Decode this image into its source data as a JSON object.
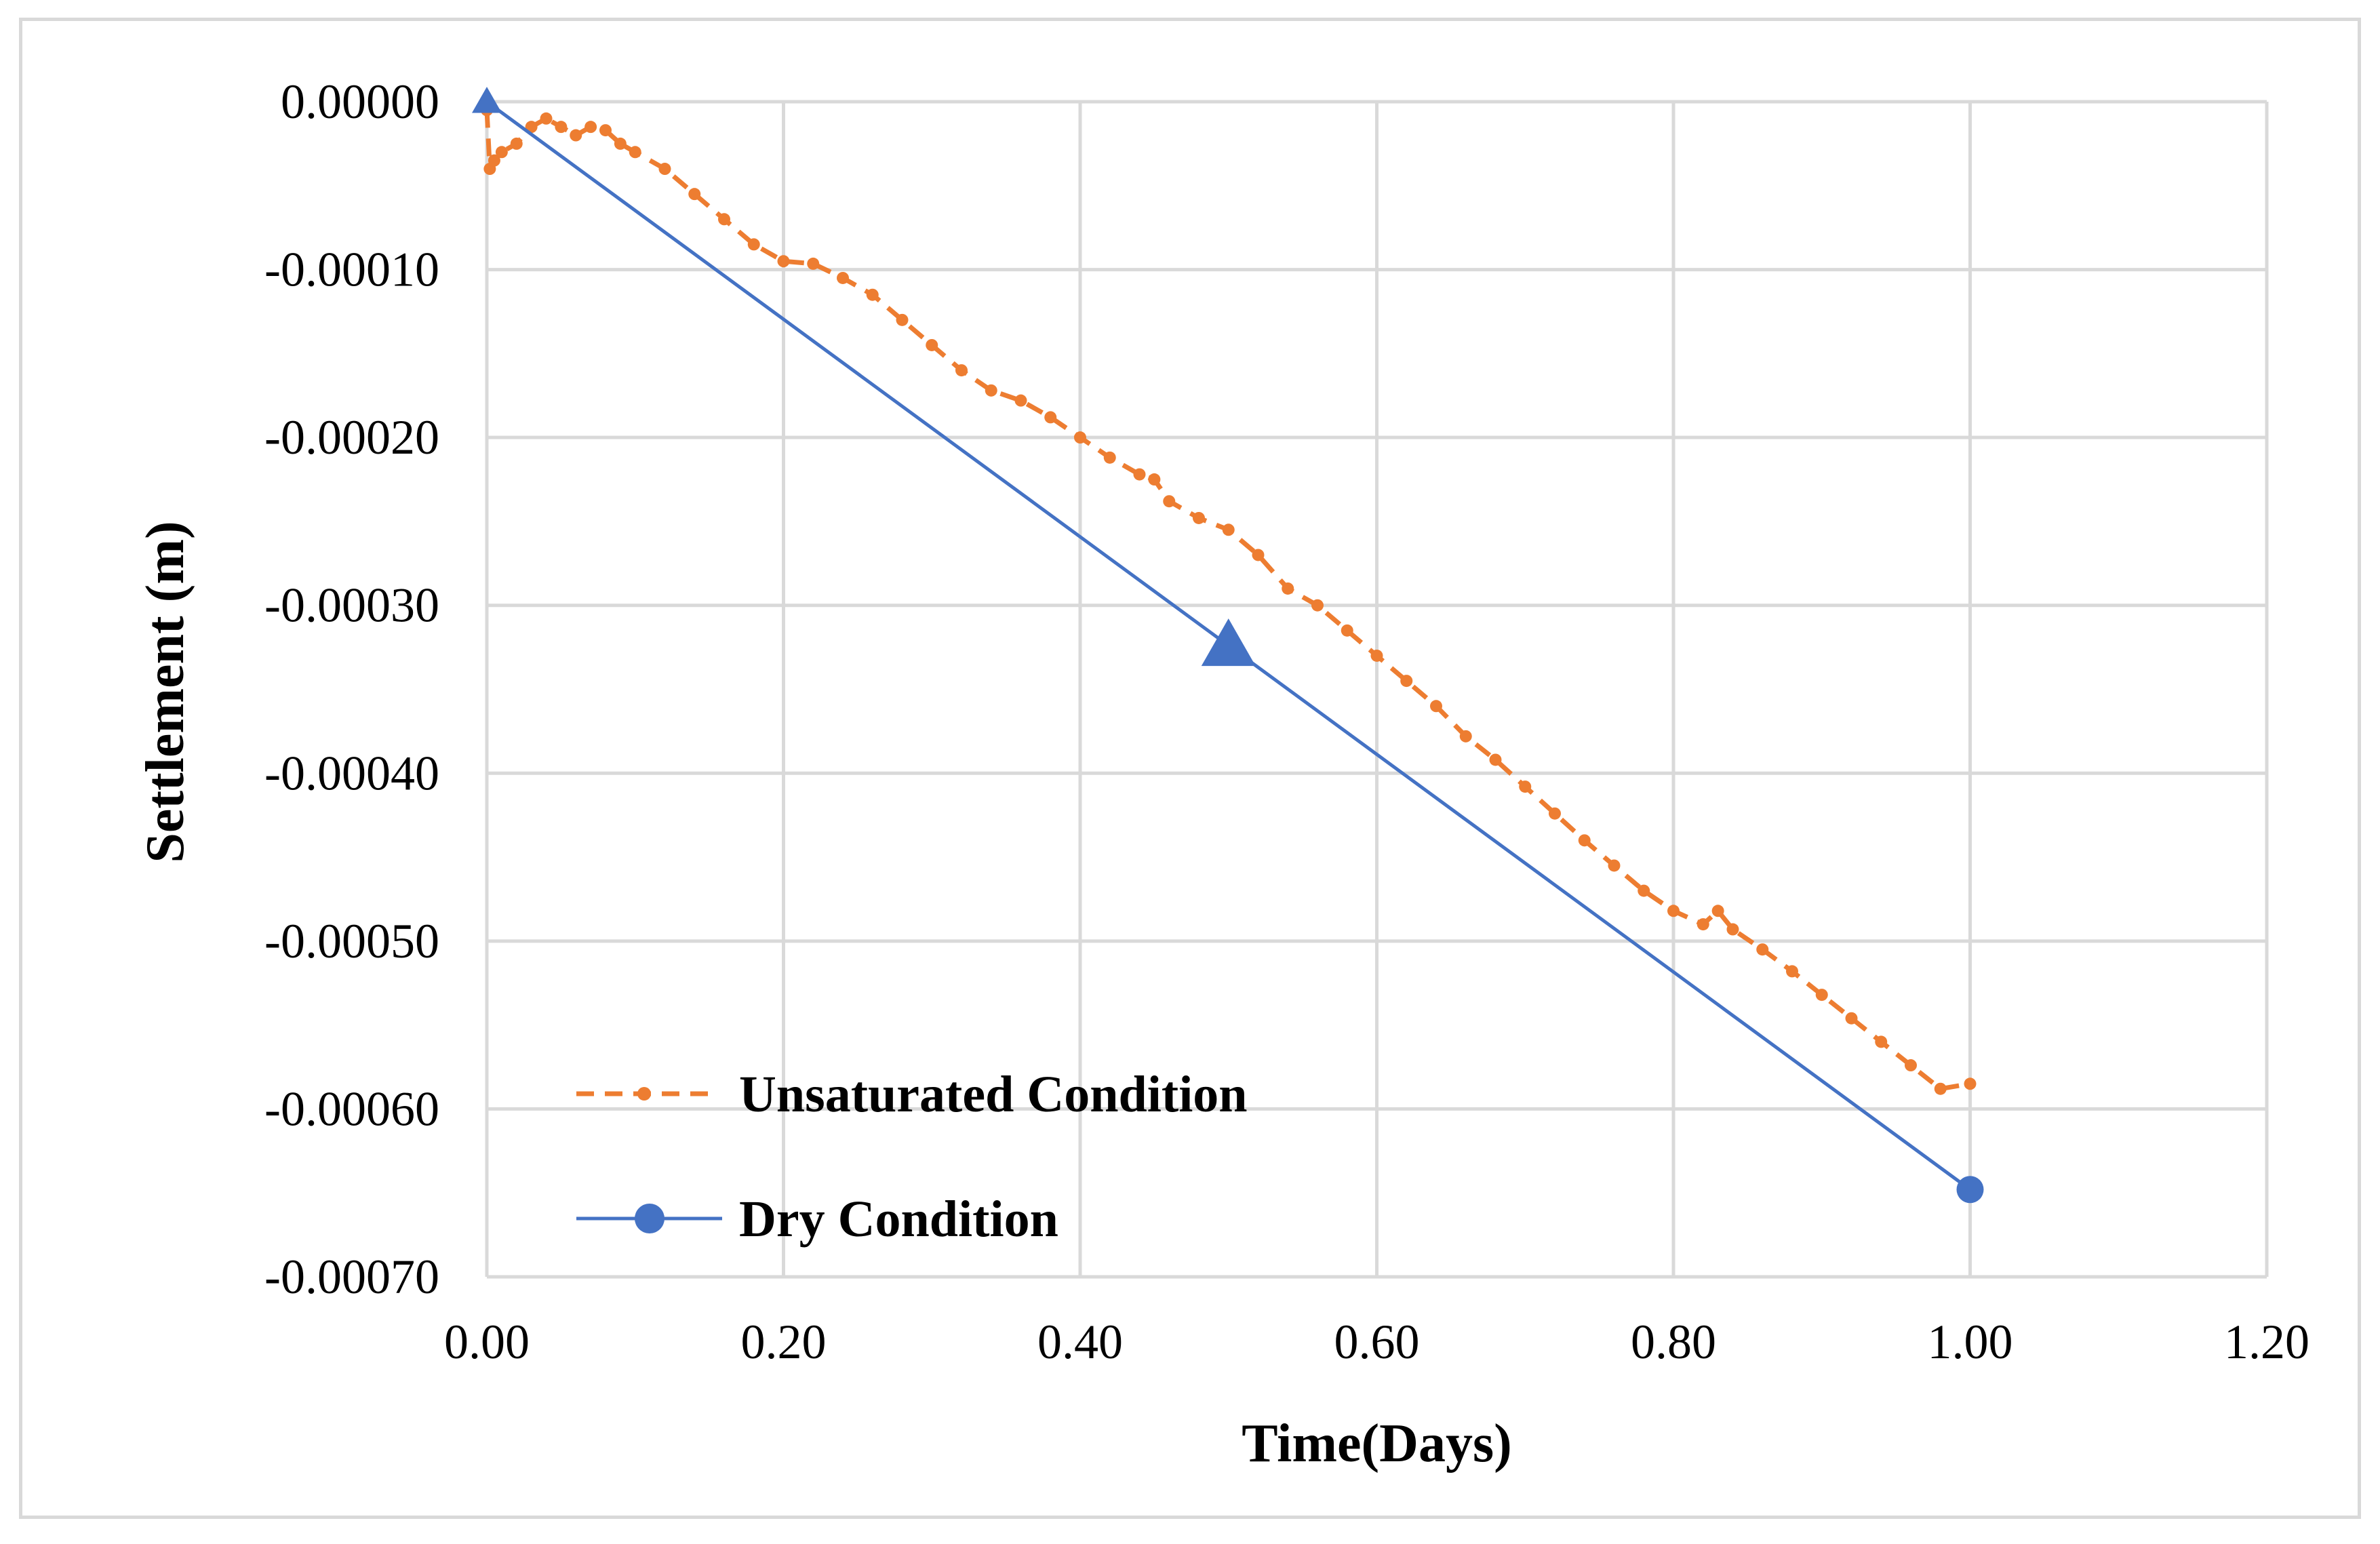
{
  "chart_data": {
    "type": "line",
    "title": "",
    "xlabel": "Time(Days)",
    "ylabel": "Settlement (m)",
    "xlim": [
      0,
      1.2
    ],
    "ylim": [
      -0.0007,
      0
    ],
    "xticks": [
      0,
      0.2,
      0.4,
      0.6,
      0.8,
      1.0,
      1.2
    ],
    "xtick_labels": [
      "0.00",
      "0.20",
      "0.40",
      "0.60",
      "0.80",
      "1.00",
      "1.20"
    ],
    "yticks": [
      0,
      -0.0001,
      -0.0002,
      -0.0003,
      -0.0004,
      -0.0005,
      -0.0006,
      -0.0007
    ],
    "ytick_labels": [
      "0.00000",
      "-0.00010",
      "-0.00020",
      "-0.00030",
      "-0.00040",
      "-0.00050",
      "-0.00060",
      "-0.00070"
    ],
    "grid": true,
    "legend_position": "bottom-left",
    "colors": {
      "unsaturated": "#ED7D31",
      "dry": "#4472C4",
      "grid": "#d9d9d9"
    },
    "series": [
      {
        "name": "Unsaturated Condition",
        "style": "dashed-dot-marker",
        "x": [
          0.0,
          0.002,
          0.005,
          0.01,
          0.02,
          0.03,
          0.04,
          0.05,
          0.06,
          0.07,
          0.08,
          0.09,
          0.1,
          0.12,
          0.14,
          0.16,
          0.18,
          0.2,
          0.22,
          0.24,
          0.26,
          0.28,
          0.3,
          0.32,
          0.34,
          0.36,
          0.38,
          0.4,
          0.42,
          0.44,
          0.45,
          0.46,
          0.48,
          0.5,
          0.52,
          0.54,
          0.56,
          0.58,
          0.6,
          0.62,
          0.64,
          0.66,
          0.68,
          0.7,
          0.72,
          0.74,
          0.76,
          0.78,
          0.8,
          0.82,
          0.83,
          0.84,
          0.86,
          0.88,
          0.9,
          0.92,
          0.94,
          0.96,
          0.98,
          1.0
        ],
        "y": [
          -5e-06,
          -4e-05,
          -3.5e-05,
          -3e-05,
          -2.5e-05,
          -1.5e-05,
          -1e-05,
          -1.5e-05,
          -2e-05,
          -1.5e-05,
          -1.7e-05,
          -2.5e-05,
          -3e-05,
          -4e-05,
          -5.5e-05,
          -7e-05,
          -8.5e-05,
          -9.5e-05,
          -9.65e-05,
          -0.000105,
          -0.000115,
          -0.00013,
          -0.000145,
          -0.00016,
          -0.000172,
          -0.000178,
          -0.000188,
          -0.0002,
          -0.000212,
          -0.000222,
          -0.000225,
          -0.000238,
          -0.000248,
          -0.000255,
          -0.00027,
          -0.00029,
          -0.0003,
          -0.000315,
          -0.00033,
          -0.000345,
          -0.00036,
          -0.000378,
          -0.000392,
          -0.000408,
          -0.000424,
          -0.00044,
          -0.000455,
          -0.00047,
          -0.000482,
          -0.00049,
          -0.000482,
          -0.000493,
          -0.000505,
          -0.000518,
          -0.000532,
          -0.000546,
          -0.00056,
          -0.000574,
          -0.000588,
          -0.000585
        ]
      },
      {
        "name": "Dry Condition",
        "style": "solid-markers",
        "x": [
          0.0,
          0.5,
          1.0
        ],
        "y": [
          0.0,
          -0.000324,
          -0.000648
        ],
        "markers": [
          "triangle-small",
          "triangle-large",
          "circle"
        ]
      }
    ]
  }
}
